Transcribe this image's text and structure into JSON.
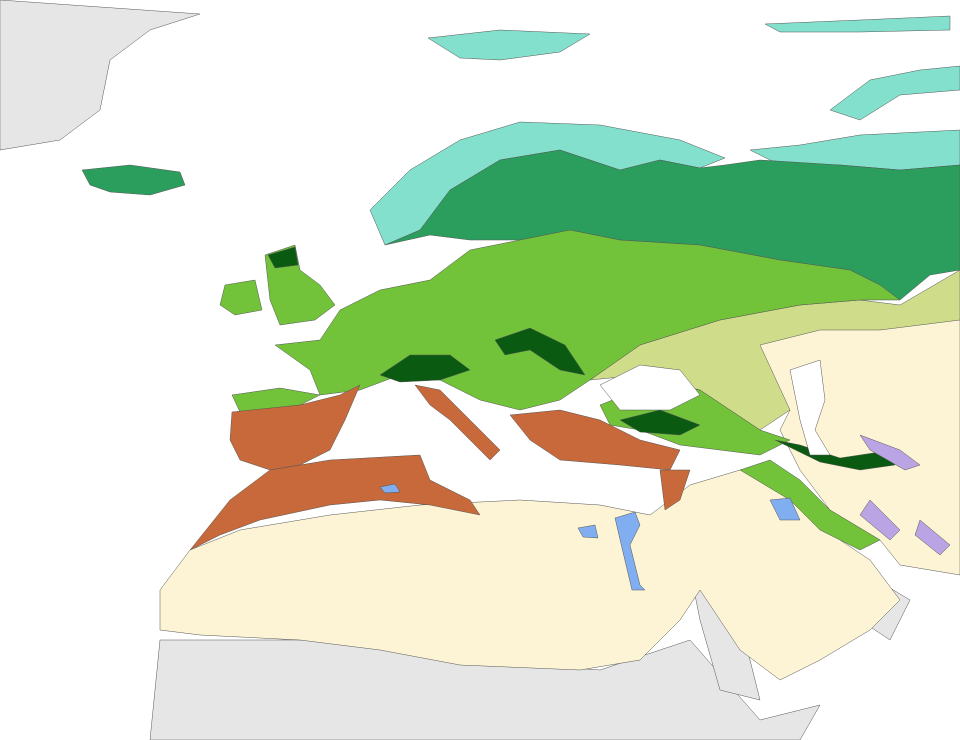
{
  "map": {
    "colors": {
      "background": "#ffffff",
      "other_land": "#e6e6e6",
      "tundra": "#82e0cd",
      "boreal_forest": "#2b9e5e",
      "temperate_broadleaf_forest": "#72c23a",
      "temperate_grassland": "#cfdc8a",
      "desert_xeric": "#fcf4d4",
      "mediterranean": "#c7693a",
      "montane_conifer": "#0b5a12",
      "flooded_grassland": "#80aef0",
      "montane_grassland": "#bba4e4"
    }
  }
}
